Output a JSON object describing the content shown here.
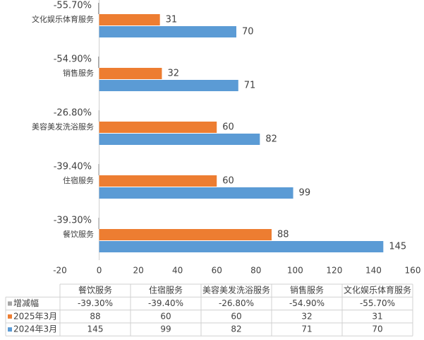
{
  "chart_data": {
    "type": "bar",
    "orientation": "horizontal",
    "categories": [
      "餐饮服务",
      "住宿服务",
      "美容美发洗浴服务",
      "销售服务",
      "文化娱乐体育服务"
    ],
    "series": [
      {
        "name": "增减幅",
        "color": "#a5a5a5",
        "values": [
          -0.393,
          -0.394,
          -0.268,
          -0.549,
          -0.557
        ],
        "value_labels": [
          "-39.30%",
          "-39.40%",
          "-26.80%",
          "-54.90%",
          "-55.70%"
        ]
      },
      {
        "name": "2025年3月",
        "color": "#ed7d31",
        "values": [
          88,
          60,
          60,
          32,
          31
        ]
      },
      {
        "name": "2024年3月",
        "color": "#5b9bd5",
        "values": [
          145,
          99,
          82,
          71,
          70
        ]
      }
    ],
    "xlim": [
      -20,
      160
    ],
    "xticks": [
      -20,
      0,
      20,
      40,
      60,
      80,
      100,
      120,
      140,
      160
    ]
  }
}
